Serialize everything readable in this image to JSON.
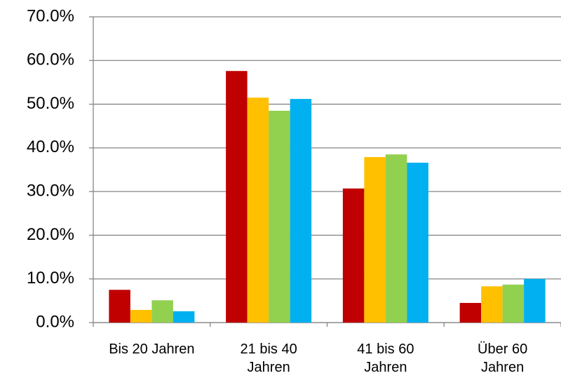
{
  "chart_data": {
    "type": "bar",
    "categories": [
      "Bis 20 Jahren",
      "21 bis 40 Jahren",
      "41 bis 60 Jahren",
      "Über 60 Jahren"
    ],
    "series": [
      {
        "color": "#c00000",
        "values": [
          7.5,
          57.6,
          30.7,
          4.5
        ]
      },
      {
        "color": "#ffc000",
        "values": [
          2.9,
          51.5,
          37.9,
          8.3
        ]
      },
      {
        "color": "#92d050",
        "values": [
          5.1,
          48.5,
          38.5,
          8.7
        ]
      },
      {
        "color": "#00b0f0",
        "values": [
          2.6,
          51.2,
          36.6,
          10.0
        ]
      }
    ],
    "ylim": [
      0,
      70
    ],
    "yticks": [
      {
        "value": 0,
        "label": "0.0%"
      },
      {
        "value": 10,
        "label": "10.0%"
      },
      {
        "value": 20,
        "label": "20.0%"
      },
      {
        "value": 30,
        "label": "30.0%"
      },
      {
        "value": 40,
        "label": "40.0%"
      },
      {
        "value": 50,
        "label": "50.0%"
      },
      {
        "value": 60,
        "label": "60.0%"
      },
      {
        "value": 70,
        "label": "70.0%"
      }
    ],
    "grid": true
  }
}
